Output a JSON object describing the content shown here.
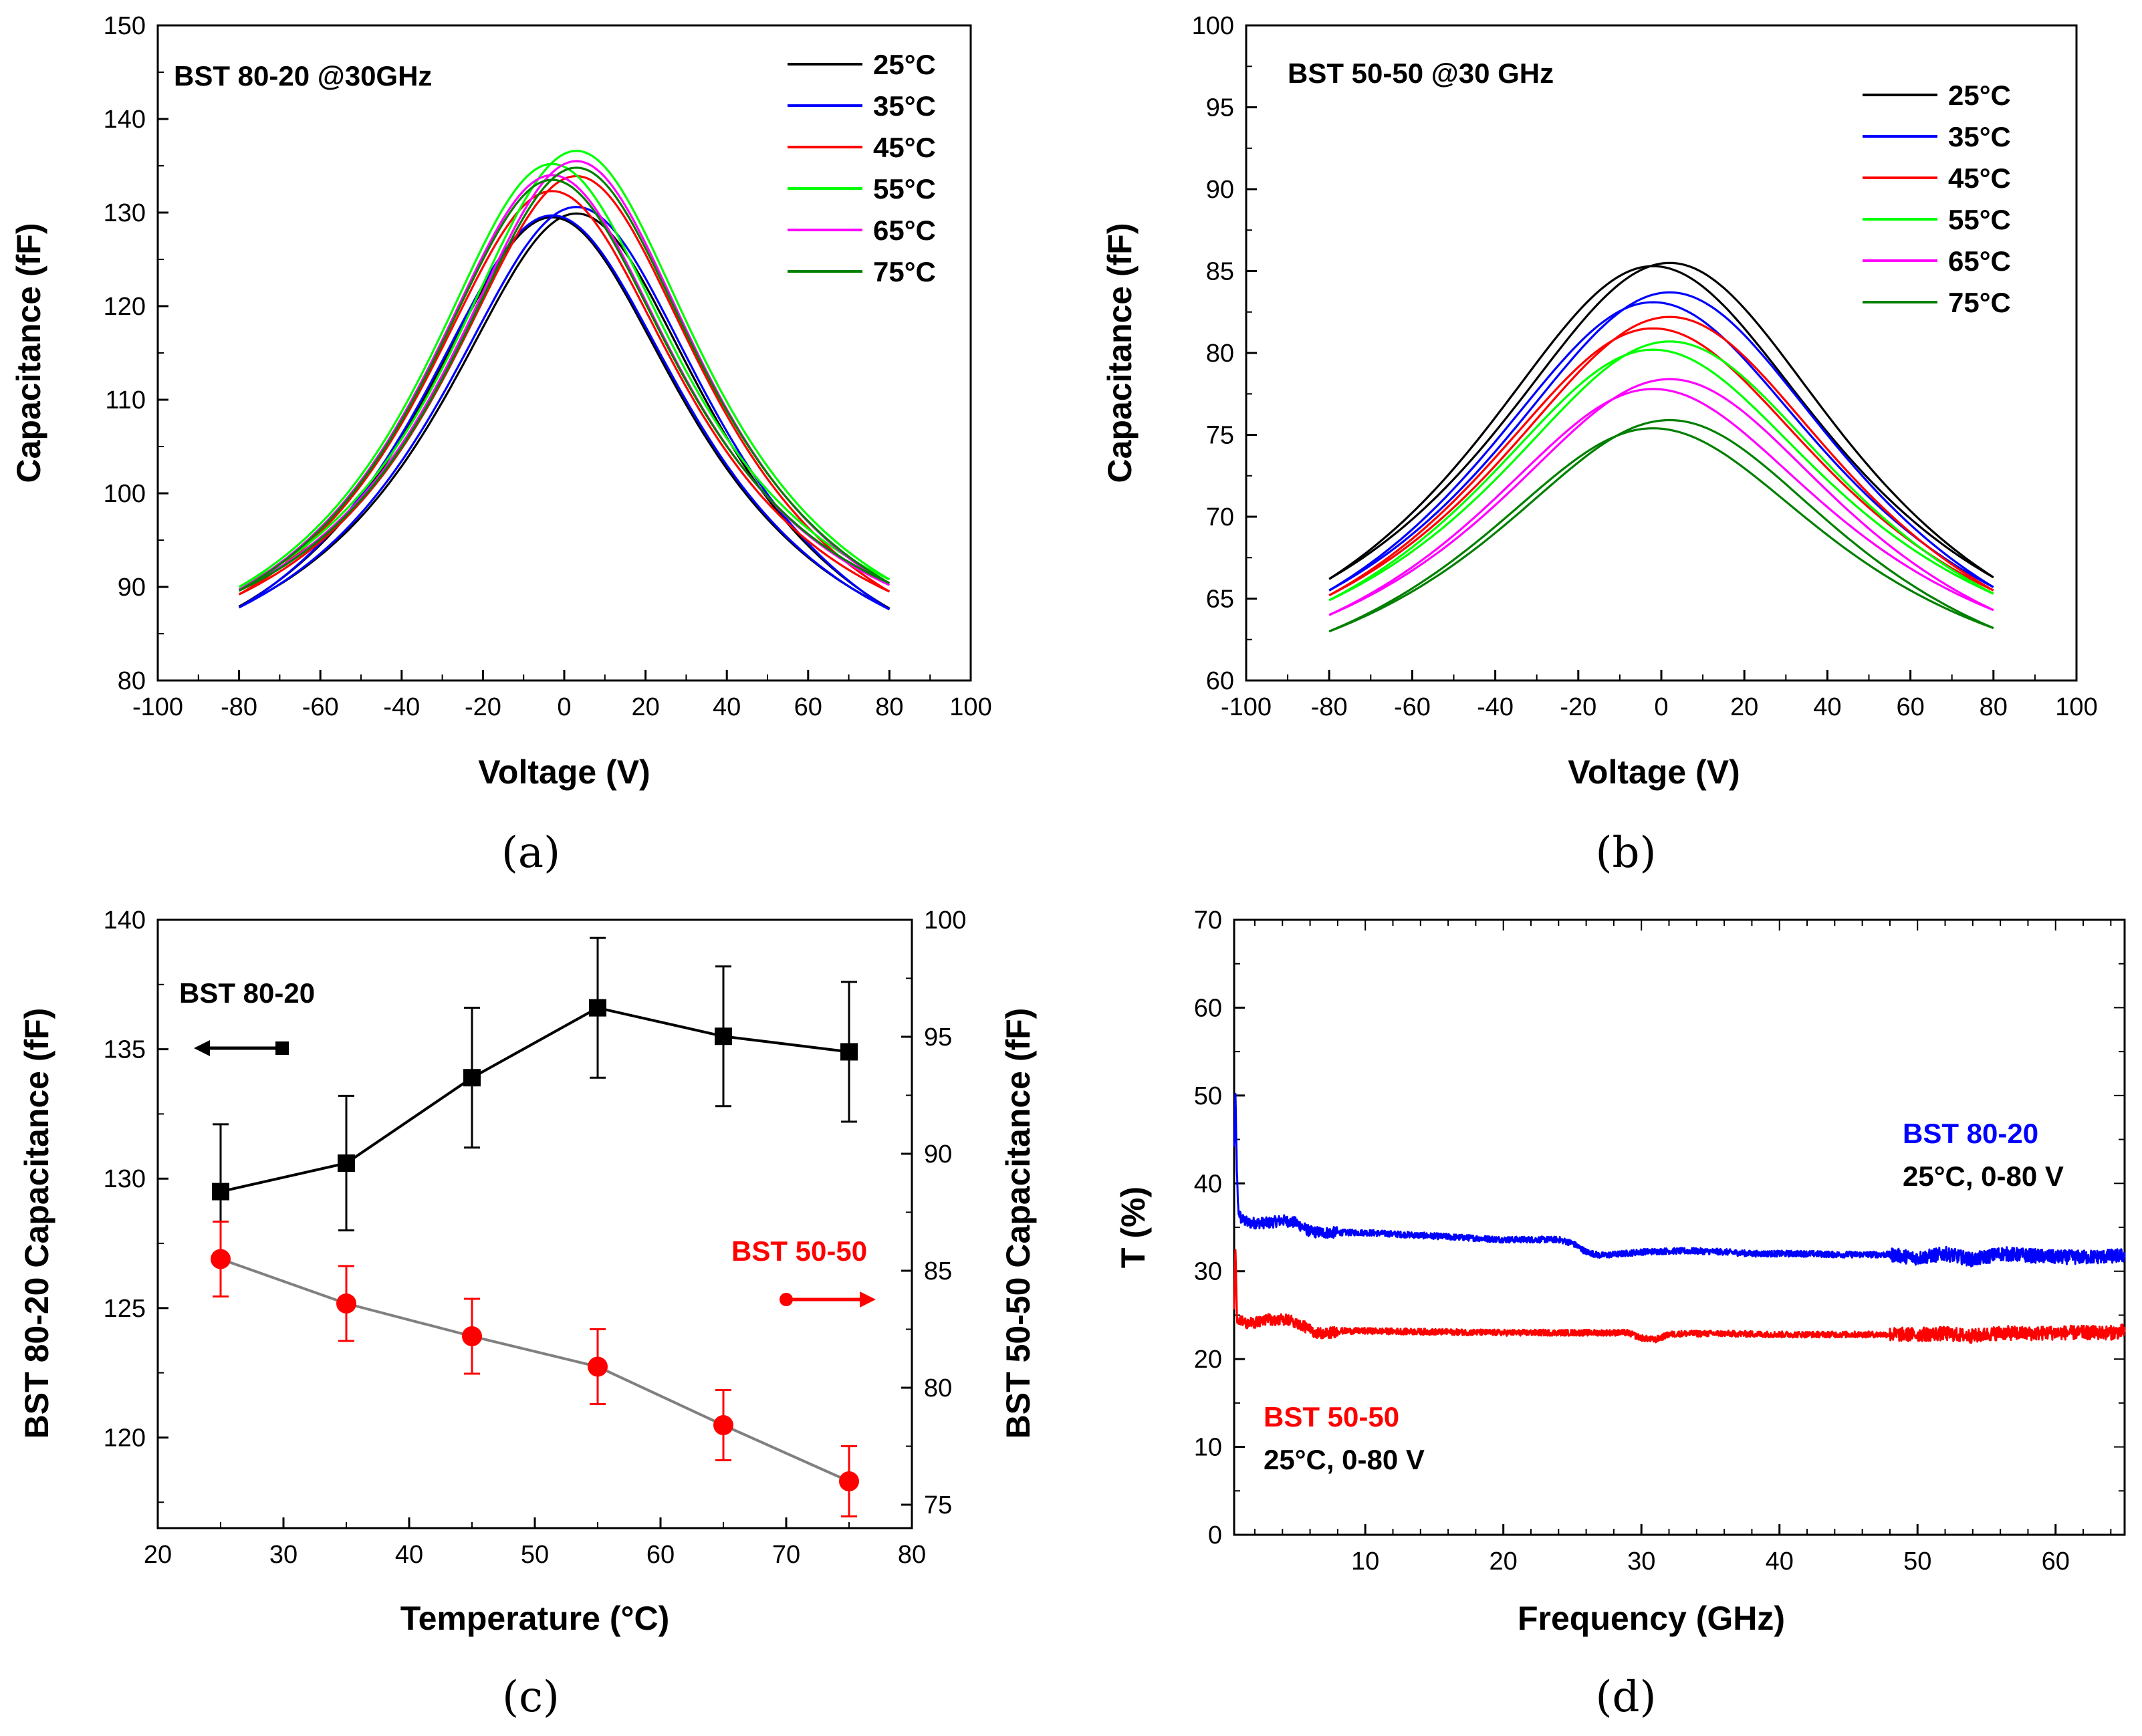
{
  "chart_data": [
    {
      "id": "a",
      "type": "line",
      "panel_label": "(a)",
      "title": "BST 80-20 @30GHz",
      "xlabel": "Voltage (V)",
      "ylabel": "Capacitance (fF)",
      "xlim": [
        -100,
        100
      ],
      "ylim": [
        80,
        150
      ],
      "xticks": [
        -100,
        -80,
        -60,
        -40,
        -20,
        0,
        20,
        40,
        60,
        80,
        100
      ],
      "yticks": [
        80,
        90,
        100,
        110,
        120,
        130,
        140,
        150
      ],
      "legend_position": "top-right",
      "series": [
        {
          "name": "25°C",
          "color": "#000000",
          "v_range": [
            -80,
            80
          ],
          "c_min_neg": 87.9,
          "c_min_pos": 87.7,
          "c_peak_up": 129.5,
          "c_peak_down": 129.9,
          "peak_shift": 3,
          "width": 42
        },
        {
          "name": "35°C",
          "color": "#0000ff",
          "v_range": [
            -80,
            80
          ],
          "c_min_neg": 87.8,
          "c_min_pos": 87.6,
          "c_peak_up": 129.7,
          "c_peak_down": 130.6,
          "peak_shift": 3,
          "width": 43
        },
        {
          "name": "45°C",
          "color": "#ff0000",
          "v_range": [
            -80,
            80
          ],
          "c_min_neg": 89.2,
          "c_min_pos": 89.5,
          "c_peak_up": 132.3,
          "c_peak_down": 133.9,
          "peak_shift": 3,
          "width": 41
        },
        {
          "name": "55°C",
          "color": "#00ff00",
          "v_range": [
            -80,
            80
          ],
          "c_min_neg": 90.0,
          "c_min_pos": 90.8,
          "c_peak_up": 135.2,
          "c_peak_down": 136.6,
          "peak_shift": 3,
          "width": 40
        },
        {
          "name": "65°C",
          "color": "#ff00ff",
          "v_range": [
            -80,
            80
          ],
          "c_min_neg": 89.7,
          "c_min_pos": 90.2,
          "c_peak_up": 134.0,
          "c_peak_down": 135.5,
          "peak_shift": 3,
          "width": 40
        },
        {
          "name": "75°C",
          "color": "#008000",
          "v_range": [
            -80,
            80
          ],
          "c_min_neg": 89.6,
          "c_min_pos": 90.4,
          "c_peak_up": 133.5,
          "c_peak_down": 134.8,
          "peak_shift": 3,
          "width": 40
        }
      ]
    },
    {
      "id": "b",
      "type": "line",
      "panel_label": "(b)",
      "title": "BST 50-50 @30 GHz",
      "xlabel": "Voltage (V)",
      "ylabel": "Capacitance (fF)",
      "xlim": [
        -100,
        100
      ],
      "ylim": [
        60,
        100
      ],
      "xticks": [
        -100,
        -80,
        -60,
        -40,
        -20,
        0,
        20,
        40,
        60,
        80,
        100
      ],
      "yticks": [
        60,
        65,
        70,
        75,
        80,
        85,
        90,
        95,
        100
      ],
      "legend_position": "top-right",
      "series": [
        {
          "name": "25°C",
          "color": "#000000",
          "v_range": [
            -80,
            80
          ],
          "c_min_neg": 66.2,
          "c_min_pos": 66.3,
          "c_peak_up": 85.3,
          "c_peak_down": 85.5,
          "peak_shift": 2,
          "width": 55
        },
        {
          "name": "35°C",
          "color": "#0000ff",
          "v_range": [
            -80,
            80
          ],
          "c_min_neg": 65.5,
          "c_min_pos": 65.7,
          "c_peak_up": 83.1,
          "c_peak_down": 83.7,
          "peak_shift": 2,
          "width": 55
        },
        {
          "name": "45°C",
          "color": "#ff0000",
          "v_range": [
            -80,
            80
          ],
          "c_min_neg": 65.2,
          "c_min_pos": 65.5,
          "c_peak_up": 81.5,
          "c_peak_down": 82.2,
          "peak_shift": 2,
          "width": 55
        },
        {
          "name": "55°C",
          "color": "#00ff00",
          "v_range": [
            -80,
            80
          ],
          "c_min_neg": 64.9,
          "c_min_pos": 65.3,
          "c_peak_up": 80.2,
          "c_peak_down": 80.7,
          "peak_shift": 2,
          "width": 55
        },
        {
          "name": "65°C",
          "color": "#ff00ff",
          "v_range": [
            -80,
            80
          ],
          "c_min_neg": 64.0,
          "c_min_pos": 64.3,
          "c_peak_up": 77.8,
          "c_peak_down": 78.4,
          "peak_shift": 2,
          "width": 55
        },
        {
          "name": "75°C",
          "color": "#008000",
          "v_range": [
            -80,
            80
          ],
          "c_min_neg": 63.0,
          "c_min_pos": 63.2,
          "c_peak_up": 75.4,
          "c_peak_down": 75.9,
          "peak_shift": 2,
          "width": 55
        }
      ]
    },
    {
      "id": "c",
      "type": "scatter",
      "panel_label": "(c)",
      "xlabel": "Temperature (°C)",
      "ylabel": "BST 80-20 Capacitance (fF)",
      "ylabel_right": "BST 50-50 Capacitance (fF)",
      "xlim": [
        20,
        80
      ],
      "ylim": [
        116.5,
        140
      ],
      "ylim_right": [
        74,
        100
      ],
      "xticks": [
        20,
        30,
        40,
        50,
        60,
        70,
        80
      ],
      "yticks": [
        120,
        125,
        130,
        135,
        140
      ],
      "yticks_right": [
        75,
        80,
        85,
        90,
        95,
        100
      ],
      "series": [
        {
          "name": "BST 80-20",
          "axis": "left",
          "color": "#000000",
          "line_color": "#000000",
          "marker": "square",
          "x": [
            25,
            35,
            45,
            55,
            65,
            75
          ],
          "y": [
            129.5,
            130.6,
            133.9,
            136.6,
            135.5,
            134.9
          ],
          "err": [
            2.6,
            2.6,
            2.7,
            2.7,
            2.7,
            2.7
          ]
        },
        {
          "name": "BST 50-50",
          "axis": "right",
          "color": "#ff0000",
          "line_color": "#808080",
          "marker": "circle",
          "x": [
            25,
            35,
            45,
            55,
            65,
            75
          ],
          "y": [
            85.5,
            83.6,
            82.2,
            80.9,
            78.4,
            76.0
          ],
          "err": [
            1.6,
            1.6,
            1.6,
            1.6,
            1.5,
            1.5
          ]
        }
      ],
      "annotations": [
        {
          "text": "BST 80-20",
          "color": "#000000",
          "arrow": "left"
        },
        {
          "text": "BST 50-50",
          "color": "#ff0000",
          "arrow": "right"
        }
      ]
    },
    {
      "id": "d",
      "type": "line",
      "panel_label": "(d)",
      "xlabel": "Frequency (GHz)",
      "ylabel": "T (%)",
      "xlim": [
        0.5,
        65
      ],
      "ylim": [
        0,
        70
      ],
      "xticks": [
        10,
        20,
        30,
        40,
        50,
        60
      ],
      "yticks": [
        0,
        10,
        20,
        30,
        40,
        50,
        60,
        70
      ],
      "series": [
        {
          "name": "BST 80-20",
          "color": "#0000ff",
          "x": [
            0.5,
            0.6,
            0.7,
            0.8,
            1,
            1.5,
            2,
            3,
            4,
            5,
            6,
            7,
            8,
            10,
            15,
            20,
            24,
            25,
            26,
            27,
            28,
            30,
            32,
            34,
            36,
            38,
            40,
            42,
            44,
            46,
            48,
            50,
            52,
            54,
            56,
            58,
            60,
            62,
            64,
            65
          ],
          "y": [
            44,
            50,
            41,
            37,
            36,
            35.5,
            35.5,
            35.5,
            35.8,
            35.5,
            34.5,
            34.4,
            34.4,
            34.4,
            34,
            33.6,
            33.6,
            33.2,
            32.2,
            31.8,
            31.9,
            32.2,
            32.3,
            32.3,
            32.2,
            32,
            32,
            32,
            31.9,
            31.9,
            31.9,
            31.5,
            32,
            31.3,
            32,
            31.8,
            31.6,
            31.6,
            31.7,
            31.8
          ]
        },
        {
          "name": "BST 50-50",
          "color": "#ff0000",
          "x": [
            0.5,
            0.6,
            0.7,
            0.8,
            1,
            1.5,
            2,
            3,
            4,
            5,
            6,
            7,
            8,
            10,
            15,
            20,
            25,
            28,
            29,
            30,
            31,
            32,
            33,
            36,
            40,
            45,
            50,
            52,
            54,
            56,
            58,
            60,
            62,
            64,
            65
          ],
          "y": [
            26,
            33,
            25,
            24,
            24.5,
            24,
            24.2,
            24.5,
            24.5,
            24.2,
            23.3,
            22.8,
            23.2,
            23.2,
            23.1,
            23,
            23,
            23,
            23,
            22.4,
            22.2,
            22.8,
            22.9,
            22.9,
            22.8,
            22.8,
            22.8,
            22.9,
            22.6,
            23,
            22.9,
            23,
            23,
            23,
            23.2
          ]
        }
      ],
      "annotations": [
        {
          "text": "BST 80-20",
          "color": "#0000ff"
        },
        {
          "text": "25°C, 0-80 V",
          "color": "#000000"
        },
        {
          "text": "BST 50-50",
          "color": "#ff0000"
        },
        {
          "text": "25°C, 0-80 V",
          "color": "#000000"
        }
      ]
    }
  ]
}
